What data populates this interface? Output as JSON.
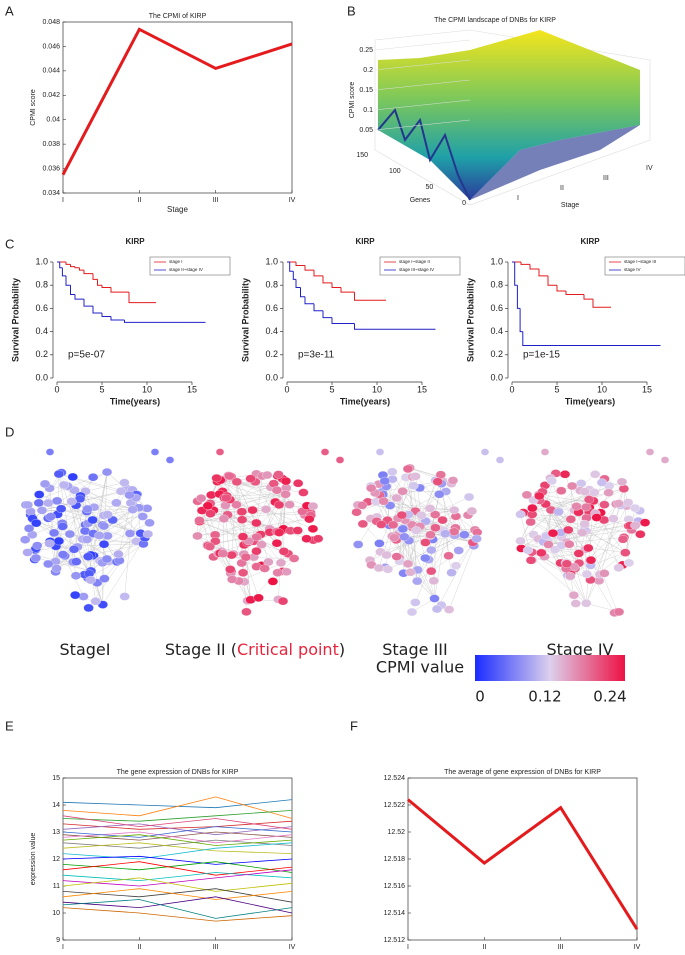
{
  "panels": [
    "A",
    "B",
    "C",
    "D",
    "E",
    "F"
  ],
  "chart_data": [
    {
      "type": "line",
      "title": "The CPMI of KIRP",
      "xlabel": "Stage",
      "ylabel": "CPMI score",
      "categories": [
        "I",
        "II",
        "III",
        "IV"
      ],
      "values": [
        0.0355,
        0.0474,
        0.0442,
        0.0462
      ],
      "color": "#e41a1c",
      "line_width": 3,
      "ylim": [
        0.034,
        0.048
      ],
      "yticks": [
        0.034,
        0.036,
        0.038,
        0.04,
        0.042,
        0.044,
        0.046,
        0.048
      ]
    },
    {
      "type": "surface",
      "title": "The CPMI landscape of DNBs for KIRP",
      "zlabel": "CPMI score",
      "xlabel": "Genes",
      "ylabel": "Stage",
      "zlim": [
        0,
        0.25
      ],
      "zticks": [
        0.05,
        0.1,
        0.15,
        0.2,
        0.25
      ],
      "xlim": [
        0,
        150
      ],
      "xticks": [
        0,
        50,
        100,
        150
      ],
      "categories": [
        "I",
        "II",
        "III",
        "IV"
      ]
    },
    {
      "type": "survival",
      "title": "KIRP",
      "xlabel": "Time(years)",
      "ylabel": "Survival Probability",
      "annotation": "p=5e-07",
      "xlim": [
        0,
        17
      ],
      "xticks": [
        0,
        5,
        10,
        15
      ],
      "ylim": [
        0,
        1
      ],
      "yticks": [
        {
          "value": 0,
          "label": "0.0"
        },
        0.2,
        0.4,
        0.6,
        0.8,
        {
          "value": 1,
          "label": "1.0"
        }
      ],
      "series": [
        {
          "name": "stage I",
          "color": "#e41a1c",
          "x": [
            0,
            1,
            1.5,
            2,
            2.5,
            3,
            4,
            4.5,
            5,
            6,
            8,
            11
          ],
          "values": [
            1,
            0.98,
            0.96,
            0.95,
            0.93,
            0.9,
            0.85,
            0.8,
            0.78,
            0.74,
            0.65,
            0.65
          ]
        },
        {
          "name": "stage II~stage IV",
          "color": "#2020c8",
          "x": [
            0,
            0.3,
            0.6,
            1,
            1.5,
            2,
            3,
            4,
            5,
            6,
            7.5,
            16.5
          ],
          "values": [
            1,
            0.95,
            0.88,
            0.8,
            0.72,
            0.68,
            0.62,
            0.56,
            0.53,
            0.5,
            0.48,
            0.48
          ]
        }
      ]
    },
    {
      "type": "survival",
      "title": "KIRP",
      "xlabel": "Time(years)",
      "ylabel": "Survival Probability",
      "annotation": "p=3e-11",
      "xlim": [
        0,
        17
      ],
      "xticks": [
        0,
        5,
        10,
        15
      ],
      "ylim": [
        0,
        1
      ],
      "yticks": [
        {
          "value": 0,
          "label": "0.0"
        },
        0.2,
        0.4,
        0.6,
        0.8,
        {
          "value": 1,
          "label": "1.0"
        }
      ],
      "series": [
        {
          "name": "stage I~stage II",
          "color": "#e41a1c",
          "x": [
            0,
            1,
            2,
            3,
            4,
            5,
            6,
            7.5,
            11
          ],
          "values": [
            1,
            0.97,
            0.93,
            0.88,
            0.82,
            0.78,
            0.74,
            0.67,
            0.67
          ]
        },
        {
          "name": "stage III~stage IV",
          "color": "#2020c8",
          "x": [
            0,
            0.3,
            0.7,
            1,
            1.5,
            2,
            3,
            4,
            5,
            7.5,
            16.5
          ],
          "values": [
            1,
            0.92,
            0.85,
            0.78,
            0.7,
            0.64,
            0.58,
            0.52,
            0.47,
            0.42,
            0.42
          ]
        }
      ]
    },
    {
      "type": "survival",
      "title": "KIRP",
      "xlabel": "Time(years)",
      "ylabel": "Survival Probability",
      "annotation": "p=1e-15",
      "xlim": [
        0,
        17
      ],
      "xticks": [
        0,
        5,
        10,
        15
      ],
      "ylim": [
        0,
        1
      ],
      "yticks": [
        {
          "value": 0,
          "label": "0.0"
        },
        0.2,
        0.4,
        0.6,
        0.8,
        {
          "value": 1,
          "label": "1.0"
        }
      ],
      "series": [
        {
          "name": "stage I~stage III",
          "color": "#e41a1c",
          "x": [
            0,
            1,
            2,
            3,
            4,
            5,
            6,
            8,
            9,
            11
          ],
          "values": [
            1,
            0.98,
            0.94,
            0.88,
            0.8,
            0.75,
            0.72,
            0.68,
            0.61,
            0.61
          ]
        },
        {
          "name": "stage IV",
          "color": "#2020c8",
          "x": [
            0,
            0.3,
            0.6,
            0.9,
            1.2,
            16.5
          ],
          "values": [
            1,
            0.8,
            0.6,
            0.4,
            0.28,
            0.28
          ]
        }
      ]
    },
    {
      "type": "line",
      "title": "The gene expression of DNBs for KIRP",
      "ylabel": "expression value",
      "categories": [
        "I",
        "II",
        "III",
        "IV"
      ],
      "line_width": 0.8,
      "ylim": [
        9,
        15
      ],
      "yticks": [
        9,
        10,
        11,
        12,
        13,
        14,
        15
      ],
      "series": [
        {
          "color": "#1f77b4",
          "values": [
            14.1,
            14.0,
            13.9,
            14.2
          ]
        },
        {
          "color": "#ff7f0e",
          "values": [
            13.8,
            13.6,
            14.3,
            13.5
          ]
        },
        {
          "color": "#2ca02c",
          "values": [
            13.5,
            13.4,
            13.6,
            13.8
          ]
        },
        {
          "color": "#d62728",
          "values": [
            13.3,
            13.1,
            13.2,
            13.4
          ]
        },
        {
          "color": "#9467bd",
          "values": [
            13.1,
            13.3,
            12.9,
            13.2
          ]
        },
        {
          "color": "#8c564b",
          "values": [
            12.9,
            12.7,
            13.0,
            12.8
          ]
        },
        {
          "color": "#e377c2",
          "values": [
            12.8,
            13.0,
            12.6,
            12.9
          ]
        },
        {
          "color": "#7f7f7f",
          "values": [
            12.6,
            12.4,
            12.7,
            12.5
          ]
        },
        {
          "color": "#bcbd22",
          "values": [
            12.4,
            12.6,
            12.3,
            12.2
          ]
        },
        {
          "color": "#17becf",
          "values": [
            12.2,
            12.0,
            12.4,
            12.6
          ]
        },
        {
          "color": "#0000ff",
          "values": [
            12.0,
            12.1,
            11.8,
            12.0
          ]
        },
        {
          "color": "#00a000",
          "values": [
            11.8,
            11.6,
            11.9,
            11.5
          ]
        },
        {
          "color": "#ff0000",
          "values": [
            11.6,
            11.9,
            11.4,
            11.7
          ]
        },
        {
          "color": "#00bfbf",
          "values": [
            11.4,
            11.2,
            11.5,
            11.3
          ]
        },
        {
          "color": "#bf00bf",
          "values": [
            11.2,
            11.0,
            11.3,
            11.6
          ]
        },
        {
          "color": "#bfbf00",
          "values": [
            11.0,
            11.3,
            10.8,
            11.1
          ]
        },
        {
          "color": "#404040",
          "values": [
            10.8,
            10.6,
            10.9,
            10.4
          ]
        },
        {
          "color": "#ff8800",
          "values": [
            10.6,
            10.9,
            10.5,
            10.8
          ]
        },
        {
          "color": "#4b0082",
          "values": [
            10.4,
            10.2,
            10.6,
            10.0
          ]
        },
        {
          "color": "#008080",
          "values": [
            10.3,
            10.5,
            9.8,
            10.2
          ]
        },
        {
          "color": "#cc6600",
          "values": [
            10.2,
            10.0,
            9.7,
            9.9
          ]
        },
        {
          "color": "#3366cc",
          "values": [
            13.0,
            12.8,
            13.2,
            13.0
          ]
        },
        {
          "color": "#66aa00",
          "values": [
            12.7,
            12.9,
            12.5,
            12.7
          ]
        },
        {
          "color": "#dd4477",
          "values": [
            13.6,
            13.2,
            13.5,
            13.1
          ]
        }
      ]
    },
    {
      "type": "line",
      "title": "The average of gene expression of DNBs for KIRP",
      "categories": [
        "I",
        "II",
        "III",
        "IV"
      ],
      "values": [
        12.5224,
        12.5177,
        12.5218,
        12.5128
      ],
      "color": "#e41a1c",
      "line_width": 3,
      "ylim": [
        12.512,
        12.524
      ],
      "yticks": [
        12.512,
        12.514,
        12.516,
        12.518,
        12.52,
        12.522,
        12.524
      ]
    }
  ],
  "network": {
    "stages": [
      {
        "text": "StageI"
      },
      {
        "text": "Stage II (",
        "highlight": "Critical point",
        "tail": ")"
      },
      {
        "text": "Stage III"
      },
      {
        "text": "Stage IV"
      }
    ],
    "colorbar": {
      "title": "CPMI value",
      "lim": [
        0,
        0.24
      ],
      "ticks": [
        0,
        0.12,
        0.24
      ]
    }
  }
}
